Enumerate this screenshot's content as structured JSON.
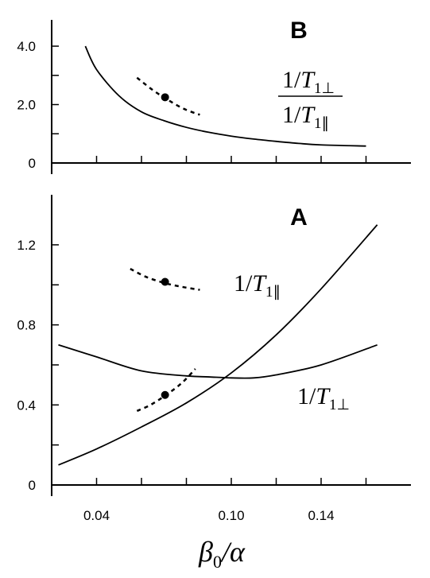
{
  "chart_data": [
    {
      "panel": "B",
      "type": "line",
      "panel_label": "B",
      "annotation": {
        "num_prefix": "1/",
        "num_var": "T",
        "num_sub": "1⊥",
        "den_prefix": "1/",
        "den_var": "T",
        "den_sub": "1∥"
      },
      "xlim": [
        0.02,
        0.18
      ],
      "ylim": [
        0,
        4.9
      ],
      "x_ticks": [
        0.04,
        0.06,
        0.08,
        0.1,
        0.12,
        0.14,
        0.16
      ],
      "y_ticks": [
        0,
        1,
        2,
        3,
        4
      ],
      "y_tick_labels": [
        {
          "value": 0,
          "label": "0"
        },
        {
          "value": 2,
          "label": "2.0"
        },
        {
          "value": 4,
          "label": "4.0"
        }
      ],
      "series": [
        {
          "style": "solid",
          "x": [
            0.035,
            0.04,
            0.05,
            0.06,
            0.07,
            0.08,
            0.09,
            0.1,
            0.11,
            0.12,
            0.13,
            0.14,
            0.16
          ],
          "y": [
            4.0,
            3.2,
            2.3,
            1.75,
            1.45,
            1.22,
            1.05,
            0.92,
            0.82,
            0.74,
            0.67,
            0.62,
            0.58
          ]
        },
        {
          "style": "dashed",
          "x": [
            0.058,
            0.065,
            0.072,
            0.079,
            0.086
          ],
          "y": [
            2.92,
            2.5,
            2.15,
            1.85,
            1.65
          ]
        }
      ],
      "points": [
        {
          "x": 0.0705,
          "y": 2.25
        }
      ]
    },
    {
      "panel": "A",
      "type": "line",
      "panel_label": "A",
      "annotations": [
        {
          "prefix": "1/",
          "var": "T",
          "sub": "1∥"
        },
        {
          "prefix": "1/",
          "var": "T",
          "sub": "1⊥"
        }
      ],
      "xlim": [
        0.02,
        0.18
      ],
      "ylim": [
        0,
        1.45
      ],
      "x_ticks": [
        0.04,
        0.06,
        0.08,
        0.1,
        0.12,
        0.14,
        0.16
      ],
      "x_tick_labels": [
        {
          "value": 0.04,
          "label": "0.04"
        },
        {
          "value": 0.1,
          "label": "0.10"
        },
        {
          "value": 0.14,
          "label": "0.14"
        }
      ],
      "y_ticks": [
        0,
        0.2,
        0.4,
        0.6,
        0.8,
        1.0,
        1.2
      ],
      "y_tick_labels": [
        {
          "value": 0,
          "label": "0"
        },
        {
          "value": 0.4,
          "label": "0.4"
        },
        {
          "value": 0.8,
          "label": "0.8"
        },
        {
          "value": 1.2,
          "label": "1.2"
        }
      ],
      "xlabel": {
        "var": "β",
        "sub": "0",
        "suffix": "/α"
      },
      "series": [
        {
          "name": "1/T1∥",
          "style": "solid",
          "x": [
            0.023,
            0.04,
            0.06,
            0.08,
            0.1,
            0.12,
            0.14,
            0.165
          ],
          "y": [
            0.1,
            0.18,
            0.29,
            0.41,
            0.56,
            0.75,
            0.98,
            1.3
          ]
        },
        {
          "name": "1/T1⊥",
          "style": "solid",
          "x": [
            0.023,
            0.04,
            0.06,
            0.08,
            0.09,
            0.1,
            0.11,
            0.12,
            0.14,
            0.165
          ],
          "y": [
            0.7,
            0.64,
            0.57,
            0.545,
            0.54,
            0.535,
            0.535,
            0.55,
            0.6,
            0.7
          ]
        },
        {
          "style": "dashed",
          "x": [
            0.055,
            0.062,
            0.07,
            0.078,
            0.086
          ],
          "y": [
            1.08,
            1.04,
            1.01,
            0.99,
            0.975
          ]
        },
        {
          "style": "dashed",
          "x": [
            0.058,
            0.064,
            0.071,
            0.078,
            0.084
          ],
          "y": [
            0.37,
            0.4,
            0.45,
            0.51,
            0.58
          ]
        }
      ],
      "points": [
        {
          "x": 0.0705,
          "y": 1.015
        },
        {
          "x": 0.0705,
          "y": 0.45
        }
      ]
    }
  ]
}
